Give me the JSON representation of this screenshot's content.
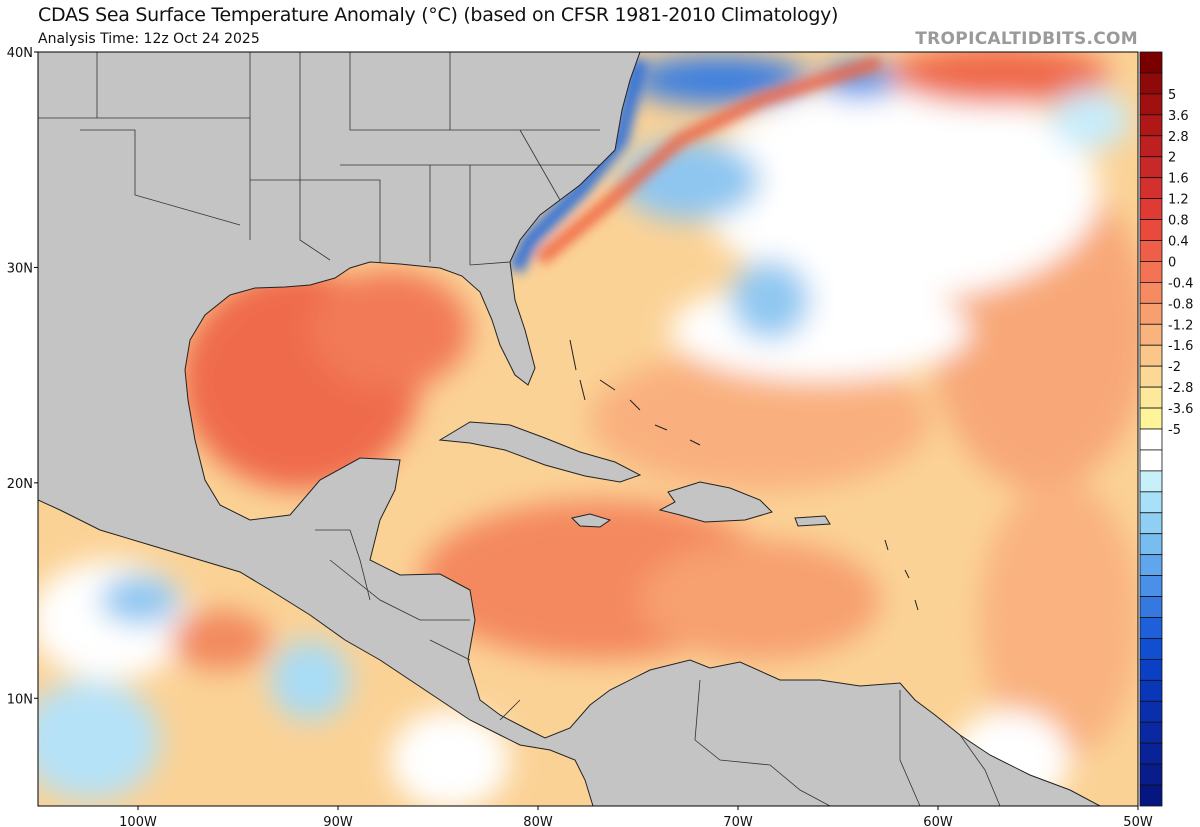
{
  "header": {
    "title": "CDAS Sea Surface Temperature Anomaly (°C) (based on CFSR 1981-2010 Climatology)",
    "analysis_time": "Analysis Time: 12z Oct 24 2025",
    "credit": "TROPICALTIDBITS.COM"
  },
  "map": {
    "lat_labels": [
      "40N",
      "30N",
      "20N",
      "10N"
    ],
    "lon_labels": [
      "100W",
      "90W",
      "80W",
      "70W",
      "60W",
      "50W"
    ],
    "lat_values": [
      40,
      30,
      20,
      10
    ],
    "lon_values": [
      -100,
      -90,
      -80,
      -70,
      -60,
      -50
    ],
    "extent": {
      "lon_min": -105,
      "lon_max": -50,
      "lat_min": 5,
      "lat_max": 40
    },
    "land_color": "#c4c4c4"
  },
  "colorbar": {
    "labels": [
      "5",
      "3.6",
      "2.8",
      "2",
      "1.6",
      "1.2",
      "0.8",
      "0.4",
      "0",
      "-0.4",
      "-0.8",
      "-1.2",
      "-1.6",
      "-2",
      "-2.8",
      "-3.6",
      "-5"
    ],
    "colors": [
      "#7a0000",
      "#8e0a0a",
      "#a01010",
      "#b01818",
      "#bd2020",
      "#c82828",
      "#d43030",
      "#e03a35",
      "#e84a3e",
      "#ef5e48",
      "#f37455",
      "#f68a62",
      "#f89f70",
      "#f9b47e",
      "#fac68a",
      "#fbd896",
      "#fde89c",
      "#fff39c",
      "#ffffff",
      "#ffffff",
      "#c8f0fb",
      "#a8e0f8",
      "#90cff4",
      "#78bdf0",
      "#5fa6ec",
      "#4a90e8",
      "#3478e0",
      "#1f60d8",
      "#124ed0",
      "#0c40c4",
      "#0a36b8",
      "#0a2eac",
      "#0a28a2",
      "#0a2298",
      "#081c8c",
      "#061680"
    ]
  }
}
